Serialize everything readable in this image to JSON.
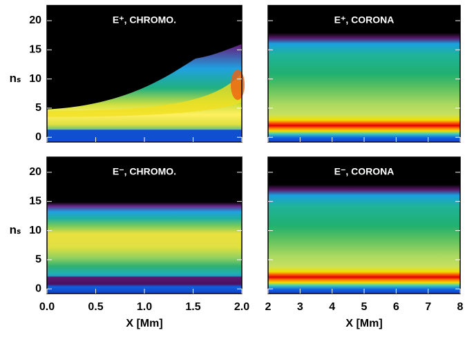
{
  "chart_data": [
    {
      "type": "heatmap",
      "title": "E⁺, CHROMO.",
      "ylabel": "nₛ",
      "xlim": [
        0,
        2
      ],
      "ylim": [
        -0.8,
        22.6
      ],
      "xticks": [
        0,
        0.5,
        1,
        1.5,
        2
      ],
      "yticks": [
        0,
        5,
        10,
        15,
        20
      ]
    },
    {
      "type": "heatmap",
      "title": "E⁺, CORONA",
      "xlim": [
        2,
        8
      ],
      "ylim": [
        -0.8,
        22.6
      ],
      "xticks": [
        2,
        3,
        4,
        5,
        6,
        7,
        8
      ],
      "yticks": [
        0,
        5,
        10,
        15,
        20
      ]
    },
    {
      "type": "heatmap",
      "title": "E⁻, CHROMO.",
      "ylabel": "nₛ",
      "xlabel": "X [Mm]",
      "xlim": [
        0,
        2
      ],
      "ylim": [
        -0.8,
        22.6
      ],
      "xticks": [
        {
          "value": 0,
          "label": "0.0"
        },
        {
          "value": 0.5,
          "label": "0.5"
        },
        {
          "value": 1,
          "label": "1.0"
        },
        {
          "value": 1.5,
          "label": "1.5"
        },
        {
          "value": 2,
          "label": "2.0"
        }
      ],
      "yticks": [
        0,
        5,
        10,
        15,
        20
      ]
    },
    {
      "type": "heatmap",
      "title": "E⁻, CORONA",
      "xlabel": "X [Mm]",
      "xlim": [
        2,
        8
      ],
      "ylim": [
        -0.8,
        22.6
      ],
      "xticks": [
        2,
        3,
        4,
        5,
        6,
        7,
        8
      ],
      "yticks": [
        0,
        5,
        10,
        15,
        20
      ]
    }
  ]
}
